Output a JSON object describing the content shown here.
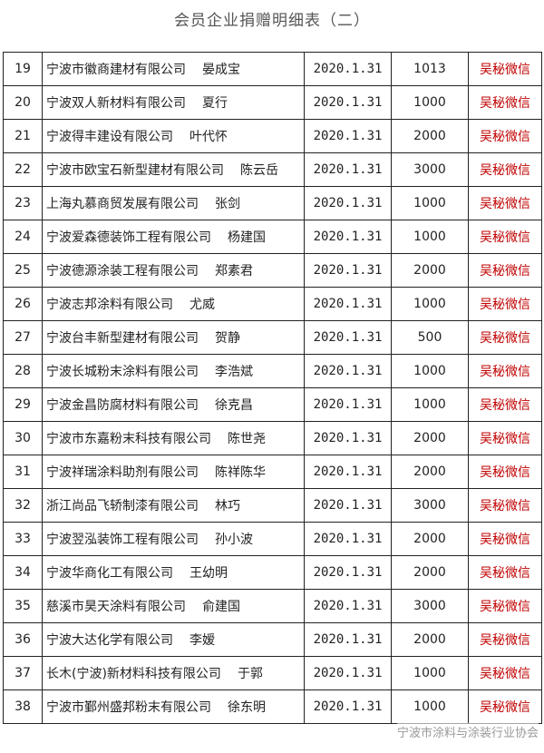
{
  "title": "会员企业捐赠明细表（二）",
  "table": {
    "rows": [
      [
        "19",
        "宁波市徽商建材有限公司",
        "晏成宝",
        "2020.1.31",
        1013,
        "吴秘微信"
      ],
      [
        "20",
        "宁波双人新材料有限公司",
        "夏行",
        "2020.1.31",
        1000,
        "吴秘微信"
      ],
      [
        "21",
        "宁波得丰建设有限公司",
        "叶代怀",
        "2020.1.31",
        2000,
        "吴秘微信"
      ],
      [
        "22",
        "宁波市欧宝石新型建材有限公司",
        "陈云岳",
        "2020.1.31",
        3000,
        "吴秘微信"
      ],
      [
        "23",
        "上海丸慕商贸发展有限公司",
        "张剑",
        "2020.1.31",
        1000,
        "吴秘微信"
      ],
      [
        "24",
        "宁波爱森德装饰工程有限公司",
        "杨建国",
        "2020.1.31",
        1000,
        "吴秘微信"
      ],
      [
        "25",
        "宁波德源涂装工程有限公司",
        "郑素君",
        "2020.1.31",
        2000,
        "吴秘微信"
      ],
      [
        "26",
        "宁波志邦涂料有限公司",
        "尤威",
        "2020.1.31",
        1000,
        "吴秘微信"
      ],
      [
        "27",
        "宁波台丰新型建材有限公司",
        "贺静",
        "2020.1.31",
        500,
        "吴秘微信"
      ],
      [
        "28",
        "宁波长城粉末涂料有限公司",
        "李浩斌",
        "2020.1.31",
        1000,
        "吴秘微信"
      ],
      [
        "29",
        "宁波金昌防腐材料有限公司",
        "徐克昌",
        "2020.1.31",
        1000,
        "吴秘微信"
      ],
      [
        "30",
        "宁波市东嘉粉末科技有限公司",
        "陈世尧",
        "2020.1.31",
        2000,
        "吴秘微信"
      ],
      [
        "31",
        "宁波祥瑞涂料助剂有限公司",
        "陈祥陈华",
        "2020.1.31",
        2000,
        "吴秘微信"
      ],
      [
        "32",
        "浙江尚品飞轿制漆有限公司",
        "林巧",
        "2020.1.31",
        3000,
        "吴秘微信"
      ],
      [
        "33",
        "宁波翌泓装饰工程有限公司",
        "孙小波",
        "2020.1.31",
        2000,
        "吴秘微信"
      ],
      [
        "34",
        "宁波华商化工有限公司",
        "王幼明",
        "2020.1.31",
        2000,
        "吴秘微信"
      ],
      [
        "35",
        "慈溪市昊天涂料有限公司",
        "俞建国",
        "2020.1.31",
        3000,
        "吴秘微信"
      ],
      [
        "36",
        "宁波大达化学有限公司",
        "李嫒",
        "2020.1.31",
        2000,
        "吴秘微信"
      ],
      [
        "37",
        "长木(宁波)新材料科技有限公司",
        "于郭",
        "2020.1.31",
        1000,
        "吴秘微信"
      ],
      [
        "38",
        "宁波市鄞州盛邦粉末有限公司",
        "徐东明",
        "2020.1.31",
        1000,
        "吴秘微信"
      ]
    ]
  },
  "watermark": "宁波市涂料与涂装行业协会"
}
